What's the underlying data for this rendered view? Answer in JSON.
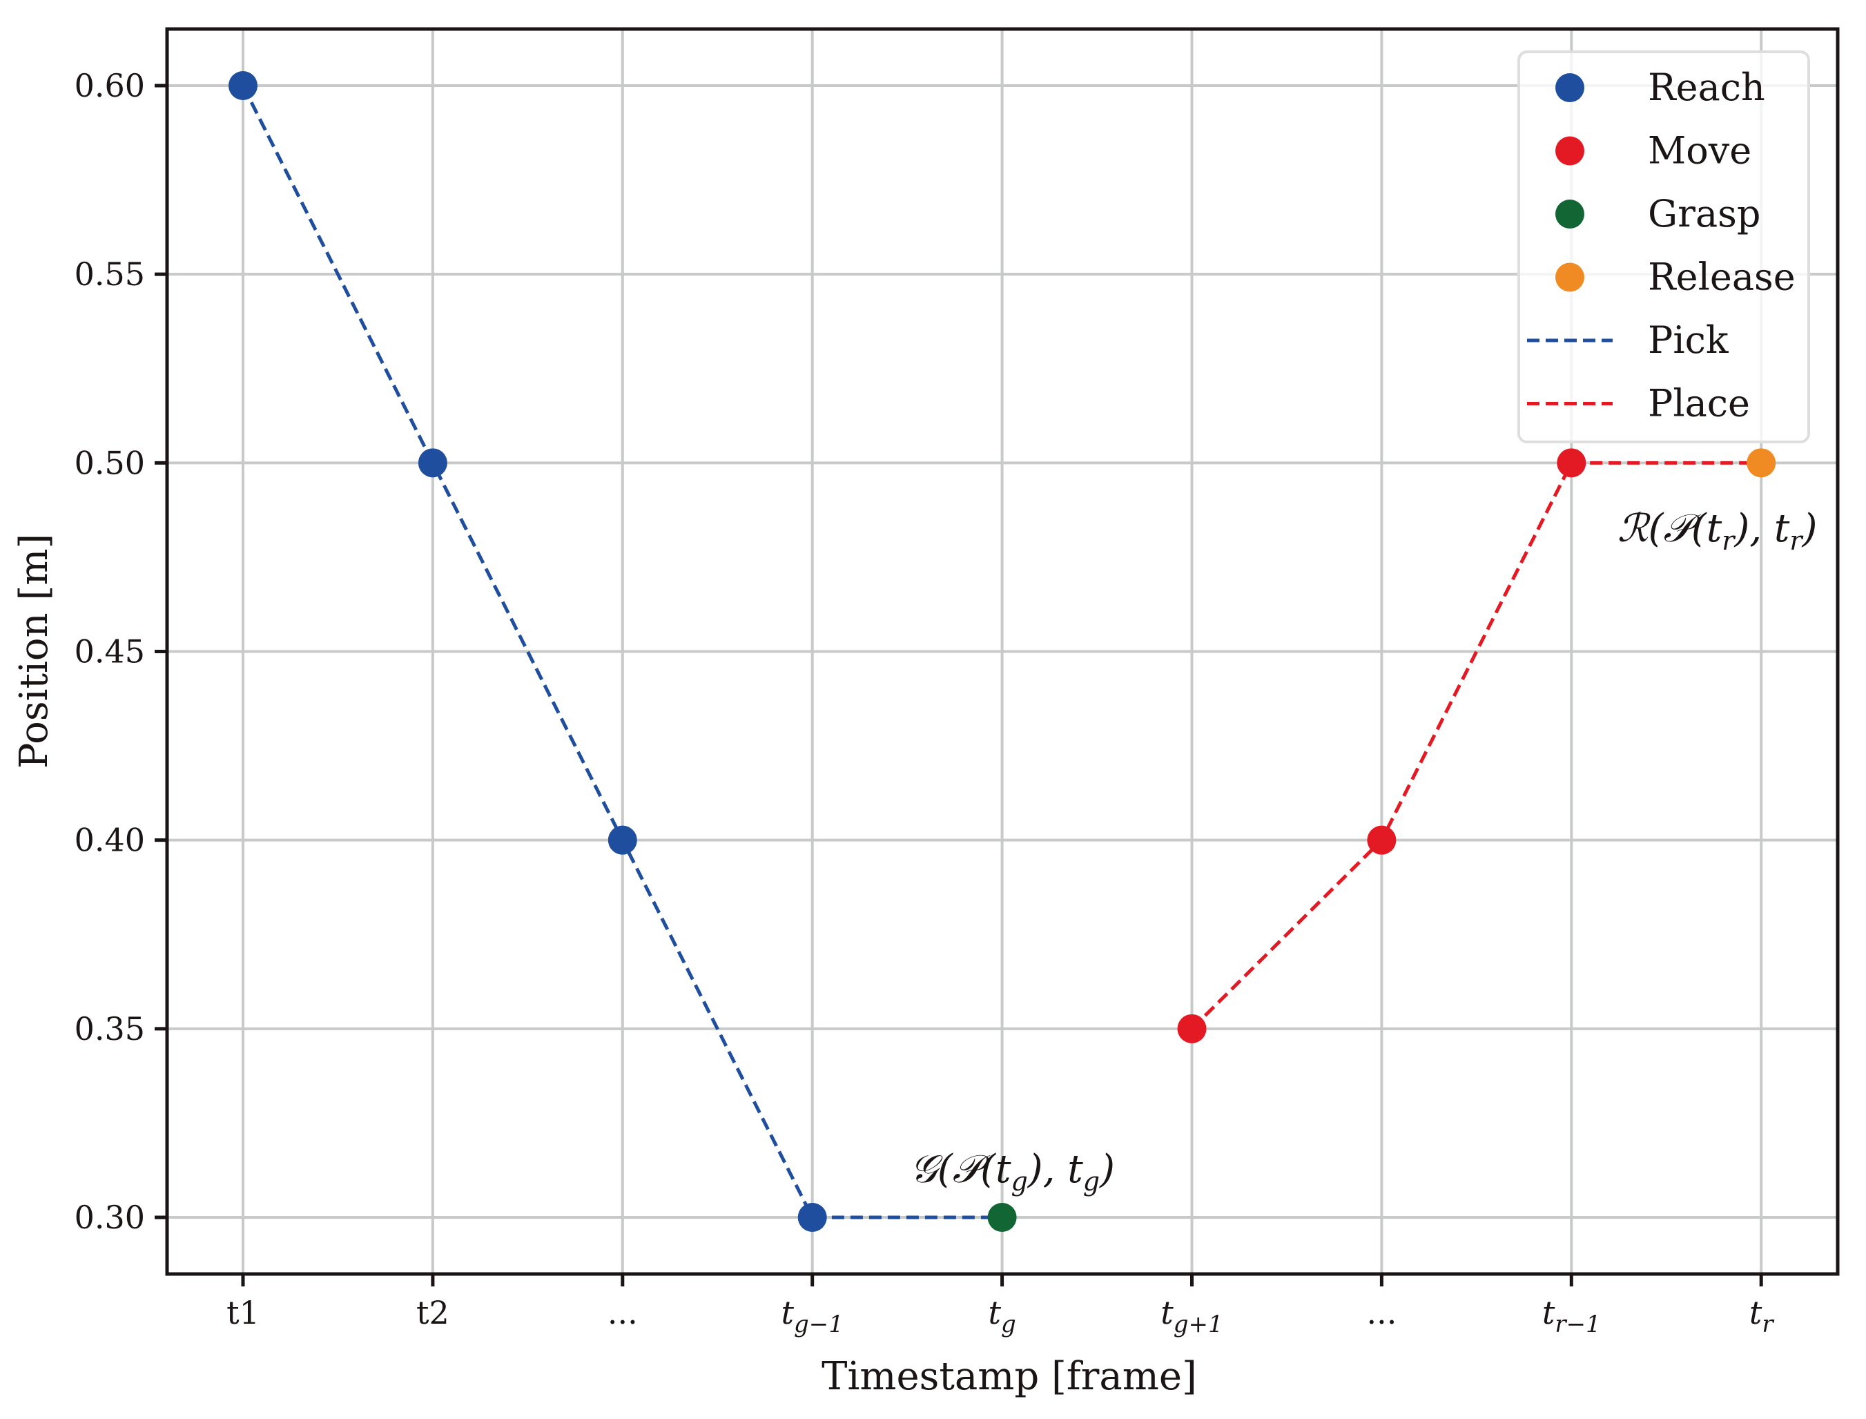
{
  "chart_data": {
    "type": "line",
    "title": "",
    "xlabel": "Timestamp [frame]",
    "ylabel": "Position [m]",
    "ylim": [
      0.285,
      0.615
    ],
    "grid": true,
    "legend_position": "upper right",
    "categories": [
      "t1",
      "t2",
      "...",
      "t_{g-1}",
      "t_g",
      "t_{g+1}",
      "...",
      "t_{r-1}",
      "t_r"
    ],
    "x_tick_labels": [
      {
        "base": "t1",
        "sub": ""
      },
      {
        "base": "t2",
        "sub": ""
      },
      {
        "base": "...",
        "sub": ""
      },
      {
        "base": "t",
        "sub": "g−1"
      },
      {
        "base": "t",
        "sub": "g"
      },
      {
        "base": "t",
        "sub": "g+1"
      },
      {
        "base": "...",
        "sub": ""
      },
      {
        "base": "t",
        "sub": "r−1"
      },
      {
        "base": "t",
        "sub": "r"
      }
    ],
    "y_ticks": [
      0.3,
      0.35,
      0.4,
      0.45,
      0.5,
      0.55,
      0.6
    ],
    "y_tick_labels": [
      "0.30",
      "0.35",
      "0.40",
      "0.45",
      "0.50",
      "0.55",
      "0.60"
    ],
    "points": [
      {
        "x": 0,
        "y": 0.6,
        "phase": "Reach"
      },
      {
        "x": 1,
        "y": 0.5,
        "phase": "Reach"
      },
      {
        "x": 2,
        "y": 0.4,
        "phase": "Reach"
      },
      {
        "x": 3,
        "y": 0.3,
        "phase": "Reach"
      },
      {
        "x": 4,
        "y": 0.3,
        "phase": "Grasp"
      },
      {
        "x": 5,
        "y": 0.35,
        "phase": "Move"
      },
      {
        "x": 6,
        "y": 0.4,
        "phase": "Move"
      },
      {
        "x": 7,
        "y": 0.5,
        "phase": "Move"
      },
      {
        "x": 8,
        "y": 0.5,
        "phase": "Release"
      }
    ],
    "series": [
      {
        "name": "Pick",
        "style": "dashed",
        "color": "#1f4e9e",
        "x": [
          0,
          1,
          2,
          3,
          4
        ],
        "values": [
          0.6,
          0.5,
          0.4,
          0.3,
          0.3
        ]
      },
      {
        "name": "Place",
        "style": "dashed",
        "color": "#e31a23",
        "x": [
          5,
          6,
          7,
          8
        ],
        "values": [
          0.35,
          0.4,
          0.5,
          0.5
        ]
      }
    ],
    "legend": [
      {
        "label": "Reach",
        "type": "marker",
        "color": "#1f4e9e"
      },
      {
        "label": "Move",
        "type": "marker",
        "color": "#e31a23"
      },
      {
        "label": "Grasp",
        "type": "marker",
        "color": "#126634"
      },
      {
        "label": "Release",
        "type": "marker",
        "color": "#ef8b22"
      },
      {
        "label": "Pick",
        "type": "dashed-line",
        "color": "#1f4e9e"
      },
      {
        "label": "Place",
        "type": "dashed-line",
        "color": "#e31a23"
      }
    ],
    "annotations": [
      {
        "text": "𝒢(𝒫(t_g), t_g)",
        "parts": [
          "𝒢(𝒫(",
          "t",
          "g",
          "), ",
          "t",
          "g",
          ")"
        ],
        "x": 4,
        "y": 0.3
      },
      {
        "text": "ℛ(𝒫(t_r), t_r)",
        "parts": [
          "ℛ(𝒫(",
          "t",
          "r",
          "), ",
          "t",
          "r",
          ")"
        ],
        "x": 8,
        "y": 0.5
      }
    ]
  },
  "colors": {
    "reach": "#1f4e9e",
    "move": "#e31a23",
    "grasp": "#126634",
    "release": "#ef8b22",
    "grid": "#c8c9c9",
    "axis": "#1a1514"
  }
}
